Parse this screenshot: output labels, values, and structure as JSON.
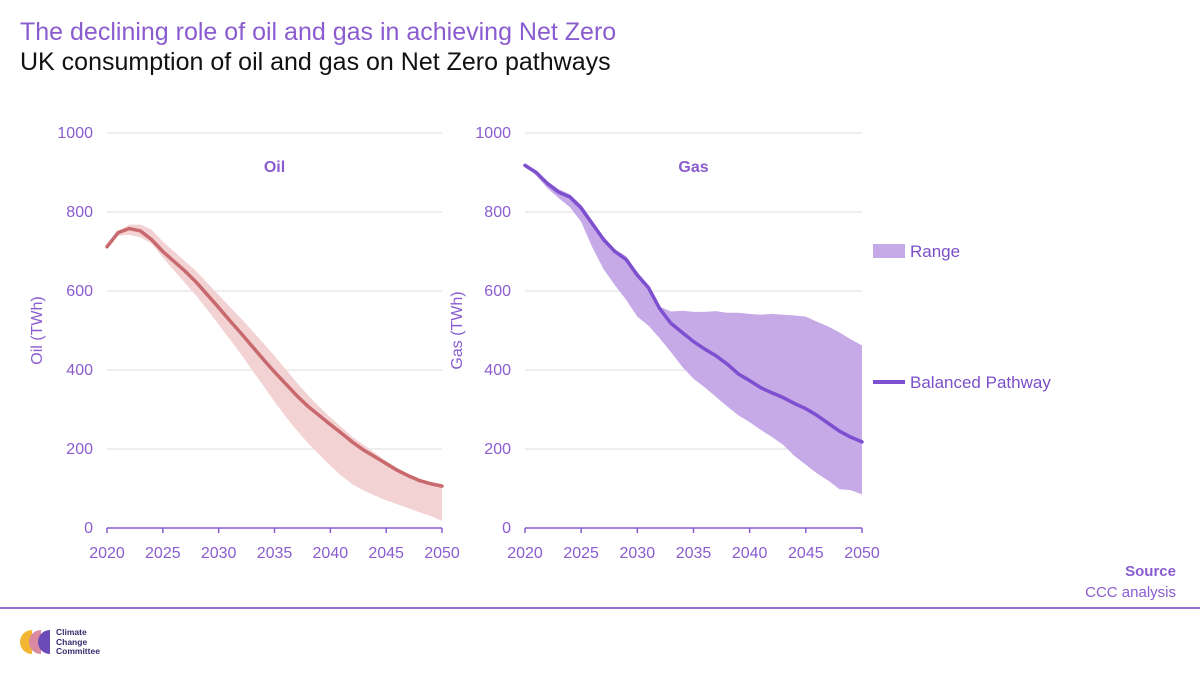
{
  "header": {
    "title": "The declining role of oil and gas in achieving Net Zero",
    "subtitle": "UK consumption of oil and gas on Net Zero pathways"
  },
  "source": {
    "heading": "Source",
    "text": "CCC analysis"
  },
  "logo": {
    "lines": [
      "Climate",
      "Change",
      "Committee"
    ]
  },
  "colors": {
    "purple": "#8a5cd0",
    "oil_line": "#c8696e",
    "oil_band": "#f2d2d2",
    "gas_line": "#7e4fcf",
    "gas_band": "#c6aae8"
  },
  "chart_data": [
    {
      "type": "line",
      "title": "Oil",
      "ylabel": "Oil (TWh)",
      "ylim": [
        0,
        1000
      ],
      "yticks": [
        0,
        200,
        400,
        600,
        800,
        1000
      ],
      "xlim": [
        2020,
        2050
      ],
      "xticks": [
        2020,
        2025,
        2030,
        2035,
        2040,
        2045,
        2050
      ],
      "grid": true,
      "x": [
        2020,
        2021,
        2022,
        2023,
        2024,
        2025,
        2026,
        2027,
        2028,
        2029,
        2030,
        2031,
        2032,
        2033,
        2034,
        2035,
        2036,
        2037,
        2038,
        2039,
        2040,
        2041,
        2042,
        2043,
        2044,
        2045,
        2046,
        2047,
        2048,
        2049,
        2050
      ],
      "series": [
        {
          "values": [
            712,
            748,
            758,
            752,
            730,
            700,
            675,
            650,
            622,
            590,
            558,
            525,
            493,
            460,
            427,
            395,
            365,
            335,
            308,
            285,
            262,
            240,
            217,
            197,
            180,
            163,
            146,
            132,
            120,
            112,
            106
          ]
        }
      ],
      "band": {
        "low": [
          712,
          740,
          742,
          736,
          720,
          685,
          652,
          620,
          588,
          552,
          515,
          478,
          440,
          400,
          360,
          320,
          282,
          247,
          215,
          186,
          158,
          132,
          110,
          95,
          82,
          70,
          60,
          50,
          40,
          30,
          18
        ],
        "high": [
          712,
          752,
          768,
          768,
          755,
          725,
          700,
          675,
          650,
          620,
          590,
          560,
          530,
          500,
          468,
          435,
          402,
          368,
          336,
          307,
          280,
          255,
          230,
          210,
          190,
          170,
          152,
          137,
          125,
          115,
          108
        ]
      }
    },
    {
      "type": "line",
      "title": "Gas",
      "ylabel": "Gas (TWh)",
      "ylim": [
        0,
        1000
      ],
      "yticks": [
        0,
        200,
        400,
        600,
        800,
        1000
      ],
      "xlim": [
        2020,
        2050
      ],
      "xticks": [
        2020,
        2025,
        2030,
        2035,
        2040,
        2045,
        2050
      ],
      "grid": true,
      "legend_position": "right",
      "x": [
        2020,
        2021,
        2022,
        2023,
        2024,
        2025,
        2026,
        2027,
        2028,
        2029,
        2030,
        2031,
        2032,
        2033,
        2034,
        2035,
        2036,
        2037,
        2038,
        2039,
        2040,
        2041,
        2042,
        2043,
        2044,
        2045,
        2046,
        2047,
        2048,
        2049,
        2050
      ],
      "series": [
        {
          "name": "Balanced Pathway",
          "values": [
            918,
            900,
            872,
            850,
            838,
            810,
            770,
            730,
            700,
            680,
            640,
            608,
            555,
            518,
            495,
            472,
            453,
            436,
            415,
            390,
            373,
            355,
            342,
            330,
            315,
            302,
            285,
            265,
            245,
            230,
            218
          ]
        }
      ],
      "band": {
        "name": "Range",
        "low": [
          918,
          892,
          860,
          835,
          812,
          775,
          710,
          655,
          615,
          578,
          535,
          512,
          480,
          445,
          408,
          378,
          356,
          332,
          308,
          285,
          268,
          248,
          230,
          210,
          182,
          160,
          138,
          120,
          98,
          96,
          85
        ],
        "high": [
          918,
          902,
          878,
          858,
          845,
          818,
          778,
          738,
          706,
          688,
          648,
          615,
          560,
          548,
          550,
          547,
          547,
          549,
          545,
          545,
          542,
          540,
          542,
          540,
          538,
          535,
          522,
          510,
          495,
          478,
          462
        ]
      }
    }
  ]
}
